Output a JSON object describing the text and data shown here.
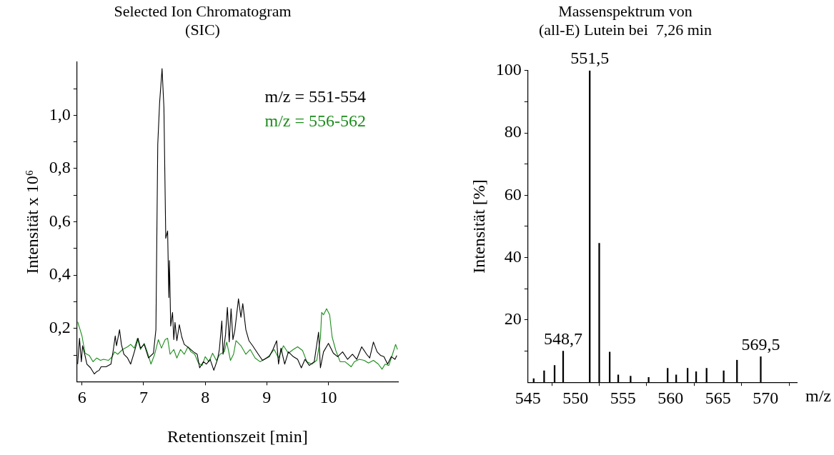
{
  "chart_data": [
    {
      "type": "line",
      "title": "Selected Ion Chromatogram\n(SIC)",
      "xlabel": "Retentionszeit [min]",
      "ylabel": "Intensität x 10⁶",
      "marker": "none",
      "legend": "top right",
      "xlim": [
        5.92,
        11.13
      ],
      "xticks": [
        6,
        7,
        8,
        9,
        10
      ],
      "ylim": [
        0,
        1.2
      ],
      "yticks": [
        {
          "value": 0.1,
          "label": null
        },
        {
          "value": 0.2,
          "label": "0,2"
        },
        {
          "value": 0.3,
          "label": null
        },
        {
          "value": 0.4,
          "label": "0,4"
        },
        {
          "value": 0.5,
          "label": null
        },
        {
          "value": 0.6,
          "label": "0,6"
        },
        {
          "value": 0.7,
          "label": null
        },
        {
          "value": 0.8,
          "label": "0,8"
        },
        {
          "value": 0.9,
          "label": null
        },
        {
          "value": 1.0,
          "label": "1,0"
        },
        {
          "value": 1.1,
          "label": null
        }
      ],
      "series": [
        {
          "name": "m/z = 551-554",
          "color": "#000000",
          "x": [
            5.93,
            5.96,
            5.99,
            6.01,
            6.05,
            6.08,
            6.14,
            6.2,
            6.24,
            6.28,
            6.31,
            6.39,
            6.47,
            6.51,
            6.54,
            6.56,
            6.58,
            6.61,
            6.64,
            6.68,
            6.74,
            6.79,
            6.85,
            6.91,
            6.95,
            7.01,
            7.08,
            7.16,
            7.2,
            7.23,
            7.26,
            7.3,
            7.33,
            7.36,
            7.39,
            7.41,
            7.42,
            7.44,
            7.47,
            7.49,
            7.51,
            7.54,
            7.58,
            7.62,
            7.66,
            7.74,
            7.81,
            7.87,
            7.91,
            7.97,
            8.02,
            8.08,
            8.14,
            8.2,
            8.23,
            8.27,
            8.29,
            8.33,
            8.36,
            8.39,
            8.42,
            8.45,
            8.48,
            8.54,
            8.58,
            8.61,
            8.66,
            8.71,
            8.77,
            8.85,
            8.93,
            9.04,
            9.1,
            9.16,
            9.19,
            9.23,
            9.29,
            9.35,
            9.43,
            9.5,
            9.56,
            9.62,
            9.69,
            9.77,
            9.84,
            9.87,
            9.92,
            10.0,
            10.08,
            10.15,
            10.23,
            10.31,
            10.39,
            10.46,
            10.54,
            10.62,
            10.67,
            10.73,
            10.79,
            10.85,
            10.9,
            10.96,
            11.02,
            11.08,
            11.11
          ],
          "values": [
            0.066,
            0.163,
            0.075,
            0.135,
            0.098,
            0.066,
            0.052,
            0.029,
            0.038,
            0.043,
            0.056,
            0.056,
            0.066,
            0.121,
            0.172,
            0.135,
            0.158,
            0.195,
            0.14,
            0.103,
            0.089,
            0.066,
            0.112,
            0.163,
            0.126,
            0.14,
            0.089,
            0.107,
            0.195,
            0.89,
            1.047,
            1.175,
            1.029,
            0.538,
            0.566,
            0.316,
            0.455,
            0.209,
            0.26,
            0.158,
            0.223,
            0.154,
            0.214,
            0.168,
            0.14,
            0.126,
            0.112,
            0.103,
            0.052,
            0.075,
            0.066,
            0.084,
            0.043,
            0.084,
            0.121,
            0.228,
            0.103,
            0.177,
            0.279,
            0.149,
            0.274,
            0.158,
            0.191,
            0.311,
            0.242,
            0.293,
            0.195,
            0.154,
            0.135,
            0.107,
            0.08,
            0.094,
            0.121,
            0.154,
            0.066,
            0.126,
            0.066,
            0.112,
            0.094,
            0.084,
            0.052,
            0.084,
            0.061,
            0.075,
            0.186,
            0.052,
            0.112,
            0.144,
            0.107,
            0.094,
            0.112,
            0.084,
            0.103,
            0.084,
            0.131,
            0.103,
            0.089,
            0.149,
            0.112,
            0.098,
            0.094,
            0.066,
            0.094,
            0.084,
            0.098
          ]
        },
        {
          "name": "m/z = 556-562",
          "color": "#1c8c1c",
          "x": [
            5.93,
            5.97,
            6.0,
            6.05,
            6.12,
            6.18,
            6.24,
            6.3,
            6.35,
            6.43,
            6.49,
            6.53,
            6.58,
            6.66,
            6.74,
            6.79,
            6.85,
            6.9,
            6.95,
            7.01,
            7.06,
            7.12,
            7.18,
            7.24,
            7.29,
            7.35,
            7.39,
            7.43,
            7.49,
            7.54,
            7.6,
            7.66,
            7.72,
            7.77,
            7.83,
            7.89,
            7.95,
            8.0,
            8.06,
            8.12,
            8.18,
            8.24,
            8.31,
            8.35,
            8.41,
            8.46,
            8.5,
            8.58,
            8.66,
            8.73,
            8.81,
            8.89,
            8.96,
            9.04,
            9.12,
            9.19,
            9.27,
            9.35,
            9.43,
            9.5,
            9.58,
            9.65,
            9.73,
            9.81,
            9.87,
            9.89,
            9.92,
            9.97,
            10.02,
            10.06,
            10.12,
            10.19,
            10.27,
            10.37,
            10.42,
            10.5,
            10.58,
            10.65,
            10.73,
            10.81,
            10.87,
            10.92,
            10.98,
            11.04,
            11.09,
            11.12
          ],
          "values": [
            0.225,
            0.195,
            0.172,
            0.107,
            0.098,
            0.075,
            0.089,
            0.08,
            0.084,
            0.08,
            0.094,
            0.112,
            0.103,
            0.121,
            0.131,
            0.14,
            0.126,
            0.163,
            0.121,
            0.144,
            0.112,
            0.066,
            0.103,
            0.158,
            0.126,
            0.158,
            0.163,
            0.103,
            0.121,
            0.089,
            0.121,
            0.103,
            0.131,
            0.112,
            0.103,
            0.07,
            0.061,
            0.094,
            0.075,
            0.107,
            0.08,
            0.103,
            0.112,
            0.149,
            0.08,
            0.103,
            0.154,
            0.135,
            0.103,
            0.121,
            0.089,
            0.075,
            0.084,
            0.098,
            0.121,
            0.089,
            0.135,
            0.107,
            0.121,
            0.131,
            0.117,
            0.075,
            0.066,
            0.08,
            0.163,
            0.26,
            0.251,
            0.274,
            0.251,
            0.168,
            0.117,
            0.075,
            0.075,
            0.056,
            0.075,
            0.084,
            0.08,
            0.07,
            0.08,
            0.066,
            0.047,
            0.066,
            0.061,
            0.103,
            0.14,
            0.121
          ]
        }
      ]
    },
    {
      "type": "bar",
      "title": "Massenspektrum von\n(all-E) Lutein bei  7,26 min",
      "xlabel": "m/z",
      "ylabel": "Intensität [%]",
      "color": "#000000",
      "xlim": [
        545,
        573.3
      ],
      "xticks": [
        545,
        550,
        555,
        560,
        565,
        570
      ],
      "ylim": [
        0,
        100
      ],
      "yticks": [
        {
          "value": 10,
          "label": null
        },
        20,
        {
          "value": 30,
          "label": null
        },
        40,
        {
          "value": 50,
          "label": null
        },
        60,
        {
          "value": 70,
          "label": null
        },
        80,
        {
          "value": 90,
          "label": null
        },
        100
      ],
      "x": [
        545.6,
        546.7,
        547.8,
        548.7,
        551.5,
        552.5,
        553.6,
        554.5,
        555.8,
        557.7,
        559.7,
        560.6,
        561.8,
        562.7,
        563.8,
        565.6,
        567.0,
        569.5
      ],
      "values": [
        1.2,
        3.7,
        5.4,
        10.0,
        100,
        44.6,
        9.7,
        2.4,
        2.0,
        1.6,
        4.5,
        2.4,
        4.5,
        3.4,
        4.5,
        3.7,
        7.1,
        8.2
      ],
      "annotations": [
        {
          "text": "551,5",
          "x": 551.5,
          "y": 100
        },
        {
          "text": "548,7",
          "x": 548.7,
          "y": 10.0
        },
        {
          "text": "569,5",
          "x": 569.5,
          "y": 8.2
        }
      ]
    }
  ]
}
